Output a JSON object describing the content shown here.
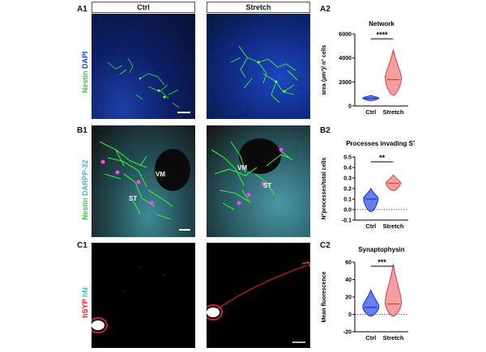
{
  "panels": {
    "a1": "A1",
    "a2": "A2",
    "b1": "B1",
    "b2": "B2",
    "c1": "C1",
    "c2": "C2"
  },
  "columns": {
    "ctrl": "Ctrl",
    "stretch": "Stretch"
  },
  "row_labels": {
    "a": {
      "part1": "Nestin",
      "part2": "DAPI"
    },
    "b": {
      "part1": "Nestin",
      "part2": "DARPP-32"
    },
    "c": {
      "part1": "hSYP",
      "part2": "hN"
    }
  },
  "image_labels": {
    "vm": "VM",
    "st": "ST"
  },
  "colors": {
    "green": "#33dd33",
    "blue": "#1a3dd6",
    "cyan": "#55c8d8",
    "red": "#e02020",
    "ctrl_violin": "#3355ee",
    "stretch_violin": "#f08080"
  },
  "chart_data": [
    {
      "type": "violin",
      "title": "Network",
      "ylabel": "area (µm²)/ n° cells",
      "categories": [
        "Ctrl",
        "Stretch"
      ],
      "ylim": [
        0,
        6000
      ],
      "yticks": [
        "0",
        "2000",
        "4000",
        "6000"
      ],
      "yticks_values": [
        0,
        2000,
        4000,
        6000
      ],
      "series": [
        {
          "category": "Ctrl",
          "median": 650,
          "min": 450,
          "max": 900
        },
        {
          "category": "Stretch",
          "median": 2200,
          "min": 900,
          "max": 4700
        }
      ],
      "significance": "****"
    },
    {
      "type": "violin",
      "title": "Processes invading ST",
      "ylabel": "N°processes/total cells",
      "categories": [
        "Ctrl",
        "Stretch"
      ],
      "ylim": [
        -0.1,
        0.5
      ],
      "yticks": [
        "-0.1",
        "0.0",
        "0.1",
        "0.2",
        "0.3",
        "0.4",
        "0.5"
      ],
      "yticks_values": [
        -0.1,
        0.0,
        0.1,
        0.2,
        0.3,
        0.4,
        0.5
      ],
      "series": [
        {
          "category": "Ctrl",
          "median": 0.1,
          "min": -0.02,
          "max": 0.2
        },
        {
          "category": "Stretch",
          "median": 0.25,
          "min": 0.18,
          "max": 0.33
        }
      ],
      "significance": "**"
    },
    {
      "type": "violin",
      "title": "Synaptophysin",
      "ylabel": "Mean fluorescence",
      "categories": [
        "Ctrl",
        "Stretch"
      ],
      "ylim": [
        -20,
        60
      ],
      "yticks": [
        "-20",
        "0",
        "20",
        "40",
        "60"
      ],
      "yticks_values": [
        -20,
        0,
        20,
        40,
        60
      ],
      "series": [
        {
          "category": "Ctrl",
          "median": 8,
          "min": -2,
          "max": 28
        },
        {
          "category": "Stretch",
          "median": 12,
          "min": -2,
          "max": 58
        }
      ],
      "significance": "***"
    }
  ]
}
